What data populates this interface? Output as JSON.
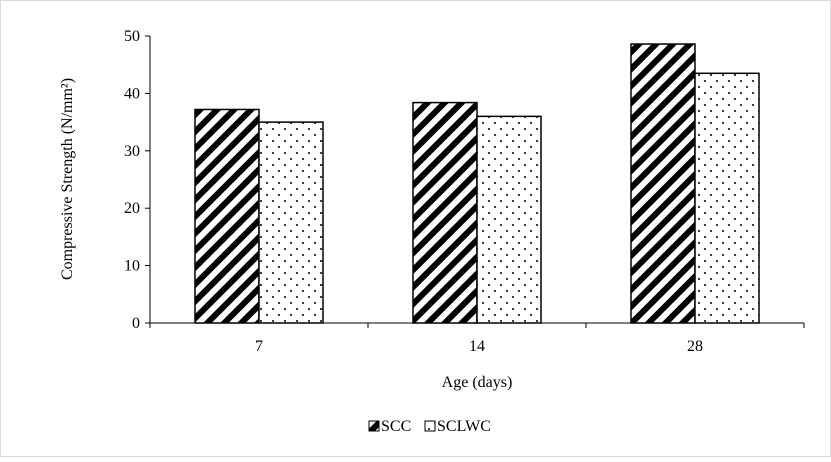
{
  "chart_data": {
    "type": "bar",
    "title": "",
    "xlabel": "Age (days)",
    "ylabel": "Compressive Strength (N/mm²)",
    "categories": [
      "7",
      "14",
      "28"
    ],
    "series": [
      {
        "name": "SCC",
        "values": [
          37.2,
          38.4,
          48.6
        ],
        "pattern": "diagonal-hatch"
      },
      {
        "name": "SCLWC",
        "values": [
          35.0,
          36.0,
          43.5
        ],
        "pattern": "dotted"
      }
    ],
    "ylim": [
      0,
      50
    ],
    "yticks": [
      "0",
      "10",
      "20",
      "30",
      "40",
      "50"
    ],
    "grid": false,
    "legend_position": "bottom",
    "colors": {
      "bar_outline": "#000000",
      "background": "#ffffff",
      "frame": "#d9d9d9"
    }
  }
}
